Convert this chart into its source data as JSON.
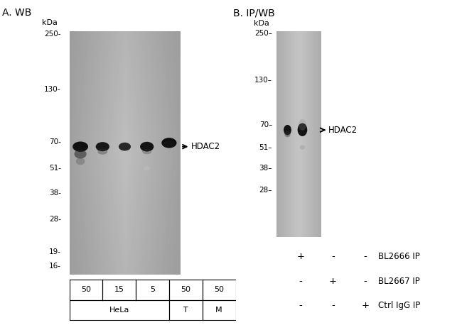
{
  "panel_A_title": "A. WB",
  "panel_B_title": "B. IP/WB",
  "kda_label": "kDa",
  "marker_label": "HDAC2",
  "panel_A_markers": [
    250,
    130,
    70,
    51,
    38,
    28,
    19,
    16
  ],
  "panel_B_markers": [
    250,
    130,
    70,
    51,
    38,
    28
  ],
  "panel_A_lanes": [
    "50",
    "15",
    "5",
    "50",
    "50"
  ],
  "panel_B_rows": [
    [
      "+",
      "-",
      "-",
      "BL2666 IP"
    ],
    [
      "-",
      "+",
      "-",
      "BL2667 IP"
    ],
    [
      "-",
      "-",
      "+",
      "Ctrl IgG IP"
    ]
  ],
  "bg_color_A": "#d8d8d8",
  "bg_color_B": "#e0e0e0",
  "white": "#ffffff",
  "black": "#000000",
  "blot_bg": "#e4e4e4",
  "blot_bg_B": "#ebebeb"
}
